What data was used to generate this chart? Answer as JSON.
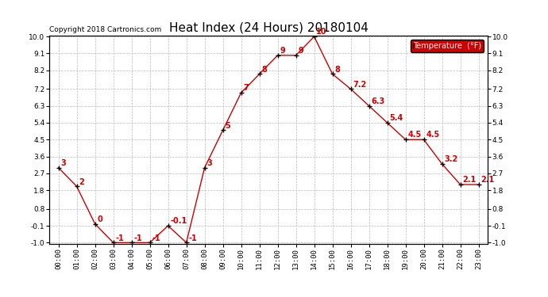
{
  "title": "Heat Index (24 Hours) 20180104",
  "copyright_text": "Copyright 2018 Cartronics.com",
  "legend_label": "Temperature  (°F)",
  "hours": [
    "00:00",
    "01:00",
    "02:00",
    "03:00",
    "04:00",
    "05:00",
    "06:00",
    "07:00",
    "08:00",
    "09:00",
    "10:00",
    "11:00",
    "12:00",
    "13:00",
    "14:00",
    "15:00",
    "16:00",
    "17:00",
    "18:00",
    "19:00",
    "20:00",
    "21:00",
    "22:00",
    "23:00"
  ],
  "values": [
    3.0,
    2.0,
    0.0,
    -1.0,
    -1.0,
    -1.0,
    -0.1,
    -1.0,
    3.0,
    5.0,
    7.0,
    8.0,
    9.0,
    9.0,
    10.0,
    8.0,
    7.2,
    6.3,
    5.4,
    4.5,
    4.5,
    3.2,
    2.1,
    2.1
  ],
  "ylim": [
    -1.0,
    10.0
  ],
  "yticks": [
    -1.0,
    -0.1,
    0.8,
    1.8,
    2.7,
    3.6,
    4.5,
    5.4,
    6.3,
    7.2,
    8.2,
    9.1,
    10.0
  ],
  "line_color": "#cc0000",
  "point_label_color": "#cc0000",
  "bg_color": "#ffffff",
  "grid_color": "#bbbbbb",
  "legend_bg": "#cc0000",
  "legend_text_color": "#ffffff",
  "title_fontsize": 11,
  "tick_fontsize": 6.5,
  "annotation_fontsize": 7,
  "copyright_fontsize": 6.5,
  "legend_fontsize": 7
}
